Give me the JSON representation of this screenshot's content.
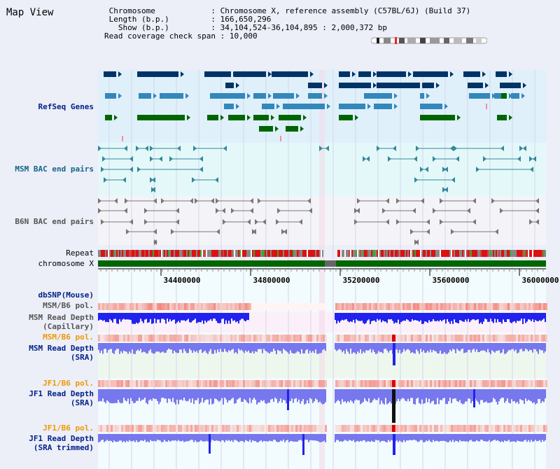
{
  "app": {
    "title": "Map View"
  },
  "info": {
    "chromosome_key": "Chromosome",
    "chromosome_value": "Chromosome X, reference assembly (C57BL/6J) (Build 37)",
    "length_key": "Length (b.p.)",
    "length_value": "166,650,296",
    "show_key": "Show (b.p.)",
    "show_value": "34,104,524-36,104,895 : 2,000,372 bp",
    "span_key": "Read coverage check span",
    "span_value": "10,000"
  },
  "tracks": {
    "refseq": "RefSeq Genes",
    "msm_bac": "MSM BAC end pairs",
    "b6n_bac": "B6N BAC end pairs",
    "repeat": "Repeat",
    "chromosome": "chromosome X",
    "dbsnp": "dbSNP(Mouse)",
    "msm_pol_1": "MSM/B6 pol.",
    "msm_depth_cap_1": "MSM Read Depth",
    "msm_depth_cap_2": "(Capillary)",
    "msm_pol_2": "MSM/B6 pol.",
    "msm_depth_sra_1": "MSM Read Depth",
    "msm_depth_sra_2": "(SRA)",
    "jf1_pol_1": "JF1/B6 pol.",
    "jf1_depth_1": "JF1 Read Depth",
    "jf1_depth_2": "(SRA)",
    "jf1_pol_2": "JF1/B6 pol.",
    "jf1_trim_1": "JF1 Read Depth",
    "jf1_trim_2": "(SRA trimmed)"
  },
  "axis": {
    "ticks": [
      "34400000",
      "34800000",
      "35200000",
      "35600000",
      "36000000"
    ]
  },
  "colors": {
    "gene_dark": "#003366",
    "gene_mid": "#3388bb",
    "gene_green": "#006600",
    "msm_bac": "#338899",
    "b6n_bac": "#777777",
    "chrom": "#006600",
    "depth_blue": "#2222ee",
    "depth_light": "#7777ee",
    "depth_black": "#111111"
  }
}
